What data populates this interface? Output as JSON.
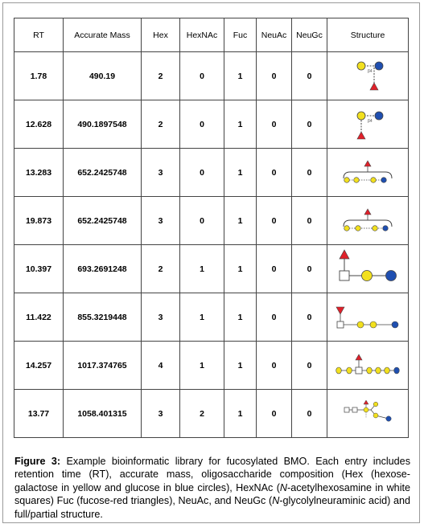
{
  "table": {
    "headers": [
      "RT",
      "Accurate Mass",
      "Hex",
      "HexNAc",
      "Fuc",
      "NeuAc",
      "NeuGc",
      "Structure"
    ],
    "rows": [
      {
        "rt": "1.78",
        "mass": "490.19",
        "hex": "2",
        "hexnac": "0",
        "fuc": "1",
        "neuac": "0",
        "neugc": "0",
        "structure_icon": "glycan-fuc-gal-glc-icon",
        "linkage": "β4"
      },
      {
        "rt": "12.628",
        "mass": "490.1897548",
        "hex": "2",
        "hexnac": "0",
        "fuc": "1",
        "neuac": "0",
        "neugc": "0",
        "structure_icon": "glycan-fuc-gal-glc-icon",
        "linkage": "β4"
      },
      {
        "rt": "13.283",
        "mass": "652.2425748",
        "hex": "3",
        "hexnac": "0",
        "fuc": "1",
        "neuac": "0",
        "neugc": "0",
        "structure_icon": "glycan-partial-bracket-icon",
        "linkage": ""
      },
      {
        "rt": "19.873",
        "mass": "652.2425748",
        "hex": "3",
        "hexnac": "0",
        "fuc": "1",
        "neuac": "0",
        "neugc": "0",
        "structure_icon": "glycan-partial-bracket-icon",
        "linkage": ""
      },
      {
        "rt": "10.397",
        "mass": "693.2691248",
        "hex": "2",
        "hexnac": "1",
        "fuc": "1",
        "neuac": "0",
        "neugc": "0",
        "structure_icon": "glycan-fuc-hexnac-hex-hex-icon",
        "linkage": ""
      },
      {
        "rt": "11.422",
        "mass": "855.3219448",
        "hex": "3",
        "hexnac": "1",
        "fuc": "1",
        "neuac": "0",
        "neugc": "0",
        "structure_icon": "glycan-linear-fucosylated-icon",
        "linkage": ""
      },
      {
        "rt": "14.257",
        "mass": "1017.374765",
        "hex": "4",
        "hexnac": "1",
        "fuc": "1",
        "neuac": "0",
        "neugc": "0",
        "structure_icon": "glycan-linear-long-icon",
        "linkage": ""
      },
      {
        "rt": "13.77",
        "mass": "1058.401315",
        "hex": "3",
        "hexnac": "2",
        "fuc": "1",
        "neuac": "0",
        "neugc": "0",
        "structure_icon": "glycan-branched-icon",
        "linkage": ""
      }
    ]
  },
  "caption": {
    "label": "Figure 3:",
    "t1": " Example bioinformatic library for fucosylated BMO. Each entry includes retention time (RT), accurate mass, oligosaccharide composition (Hex (hexose-galactose in yellow and glucose in blue circles), HexNAc (",
    "i1": "N",
    "t2": "-acetylhexosamine in white squares) Fuc (fucose-red triangles), NeuAc, and NeuGc (",
    "i2": "N",
    "t3": "-glycolylneuraminic acid) and full/partial structure."
  },
  "colors": {
    "galactose": "#f2e01e",
    "glucose": "#1f4fb0",
    "fucose": "#e0202a",
    "hexnac": "#ffffff",
    "line": "#444444"
  }
}
